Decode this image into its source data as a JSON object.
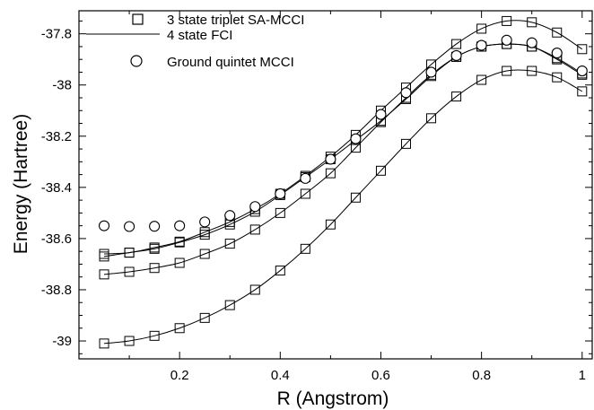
{
  "chart_data": {
    "type": "line",
    "xlabel": "R (Angstrom)",
    "ylabel": "Energy (Hartree)",
    "xlim": [
      0.0,
      1.02
    ],
    "ylim": [
      -39.07,
      -37.71
    ],
    "xticks": [
      0.2,
      0.4,
      0.6,
      0.8,
      1
    ],
    "xtick_labels": [
      "0.2",
      "0.4",
      "0.6",
      "0.8",
      "1"
    ],
    "yticks": [
      -39,
      -38.8,
      -38.6,
      -38.4,
      -38.2,
      -38,
      -37.8
    ],
    "ytick_labels": [
      "-39",
      "-38.8",
      "-38.6",
      "-38.4",
      "-38.2",
      "-38",
      "-37.8"
    ],
    "grid": false,
    "legend": {
      "placement": "top-left",
      "entries": [
        {
          "label": "3 state triplet SA-MCCI",
          "marker": "square"
        },
        {
          "label": "4 state FCI",
          "marker": "line"
        },
        {
          "label": "Ground quintet MCCI",
          "marker": "circle"
        }
      ]
    },
    "x": [
      0.05,
      0.1,
      0.15,
      0.2,
      0.25,
      0.3,
      0.35,
      0.4,
      0.45,
      0.5,
      0.55,
      0.6,
      0.65,
      0.7,
      0.75,
      0.8,
      0.85,
      0.9,
      0.95,
      1.0
    ],
    "series": [
      {
        "name": "3 state triplet SA-MCCI",
        "group": "state-1",
        "marker": "square",
        "values": [
          -38.66,
          -38.655,
          -38.635,
          -38.612,
          -38.575,
          -38.535,
          -38.485,
          -38.425,
          -38.355,
          -38.28,
          -38.195,
          -38.1,
          -38.01,
          -37.92,
          -37.84,
          -37.78,
          -37.75,
          -37.755,
          -37.795,
          -37.86
        ]
      },
      {
        "name": "3 state triplet SA-MCCI",
        "group": "state-2",
        "marker": "square",
        "values": [
          -38.67,
          -38.655,
          -38.64,
          -38.615,
          -38.585,
          -38.545,
          -38.495,
          -38.43,
          -38.36,
          -38.29,
          -38.215,
          -38.14,
          -38.055,
          -37.965,
          -37.89,
          -37.85,
          -37.84,
          -37.85,
          -37.9,
          -37.96
        ]
      },
      {
        "name": "3 state triplet SA-MCCI",
        "group": "state-3",
        "marker": "square",
        "values": [
          -38.74,
          -38.73,
          -38.715,
          -38.695,
          -38.66,
          -38.62,
          -38.565,
          -38.5,
          -38.425,
          -38.345,
          -38.245,
          -38.145,
          -38.05,
          -37.96,
          -37.89,
          -37.85,
          -37.84,
          -37.85,
          -37.895,
          -37.955
        ]
      },
      {
        "name": "3 state triplet SA-MCCI",
        "group": "state-4",
        "marker": "square",
        "values": [
          -39.01,
          -39.0,
          -38.98,
          -38.95,
          -38.91,
          -38.86,
          -38.8,
          -38.725,
          -38.64,
          -38.545,
          -38.44,
          -38.335,
          -38.23,
          -38.13,
          -38.045,
          -37.98,
          -37.945,
          -37.945,
          -37.97,
          -38.025
        ]
      },
      {
        "name": "4 state FCI",
        "group": "state-1",
        "marker": "none",
        "values": [
          -38.66,
          -38.655,
          -38.635,
          -38.612,
          -38.575,
          -38.535,
          -38.485,
          -38.425,
          -38.355,
          -38.28,
          -38.195,
          -38.1,
          -38.01,
          -37.92,
          -37.84,
          -37.78,
          -37.75,
          -37.755,
          -37.795,
          -37.86
        ]
      },
      {
        "name": "4 state FCI",
        "group": "state-2",
        "marker": "none",
        "values": [
          -38.67,
          -38.655,
          -38.64,
          -38.615,
          -38.585,
          -38.545,
          -38.495,
          -38.43,
          -38.36,
          -38.29,
          -38.215,
          -38.14,
          -38.055,
          -37.965,
          -37.89,
          -37.85,
          -37.84,
          -37.85,
          -37.9,
          -37.96
        ]
      },
      {
        "name": "4 state FCI",
        "group": "state-3",
        "marker": "none",
        "values": [
          -38.74,
          -38.73,
          -38.715,
          -38.695,
          -38.66,
          -38.62,
          -38.565,
          -38.5,
          -38.425,
          -38.345,
          -38.245,
          -38.145,
          -38.05,
          -37.96,
          -37.89,
          -37.85,
          -37.84,
          -37.85,
          -37.895,
          -37.955
        ]
      },
      {
        "name": "4 state FCI",
        "group": "state-4",
        "marker": "none",
        "values": [
          -39.01,
          -39.0,
          -38.98,
          -38.95,
          -38.91,
          -38.86,
          -38.8,
          -38.725,
          -38.64,
          -38.545,
          -38.44,
          -38.335,
          -38.23,
          -38.13,
          -38.045,
          -37.98,
          -37.945,
          -37.945,
          -37.97,
          -38.025
        ]
      },
      {
        "name": "Ground quintet MCCI",
        "group": "quintet",
        "marker": "circle",
        "values": [
          -38.55,
          -38.553,
          -38.552,
          -38.55,
          -38.535,
          -38.51,
          -38.475,
          -38.425,
          -38.365,
          -38.29,
          -38.21,
          -38.115,
          -38.03,
          -37.95,
          -37.885,
          -37.845,
          -37.825,
          -37.835,
          -37.875,
          -37.945
        ]
      }
    ]
  }
}
